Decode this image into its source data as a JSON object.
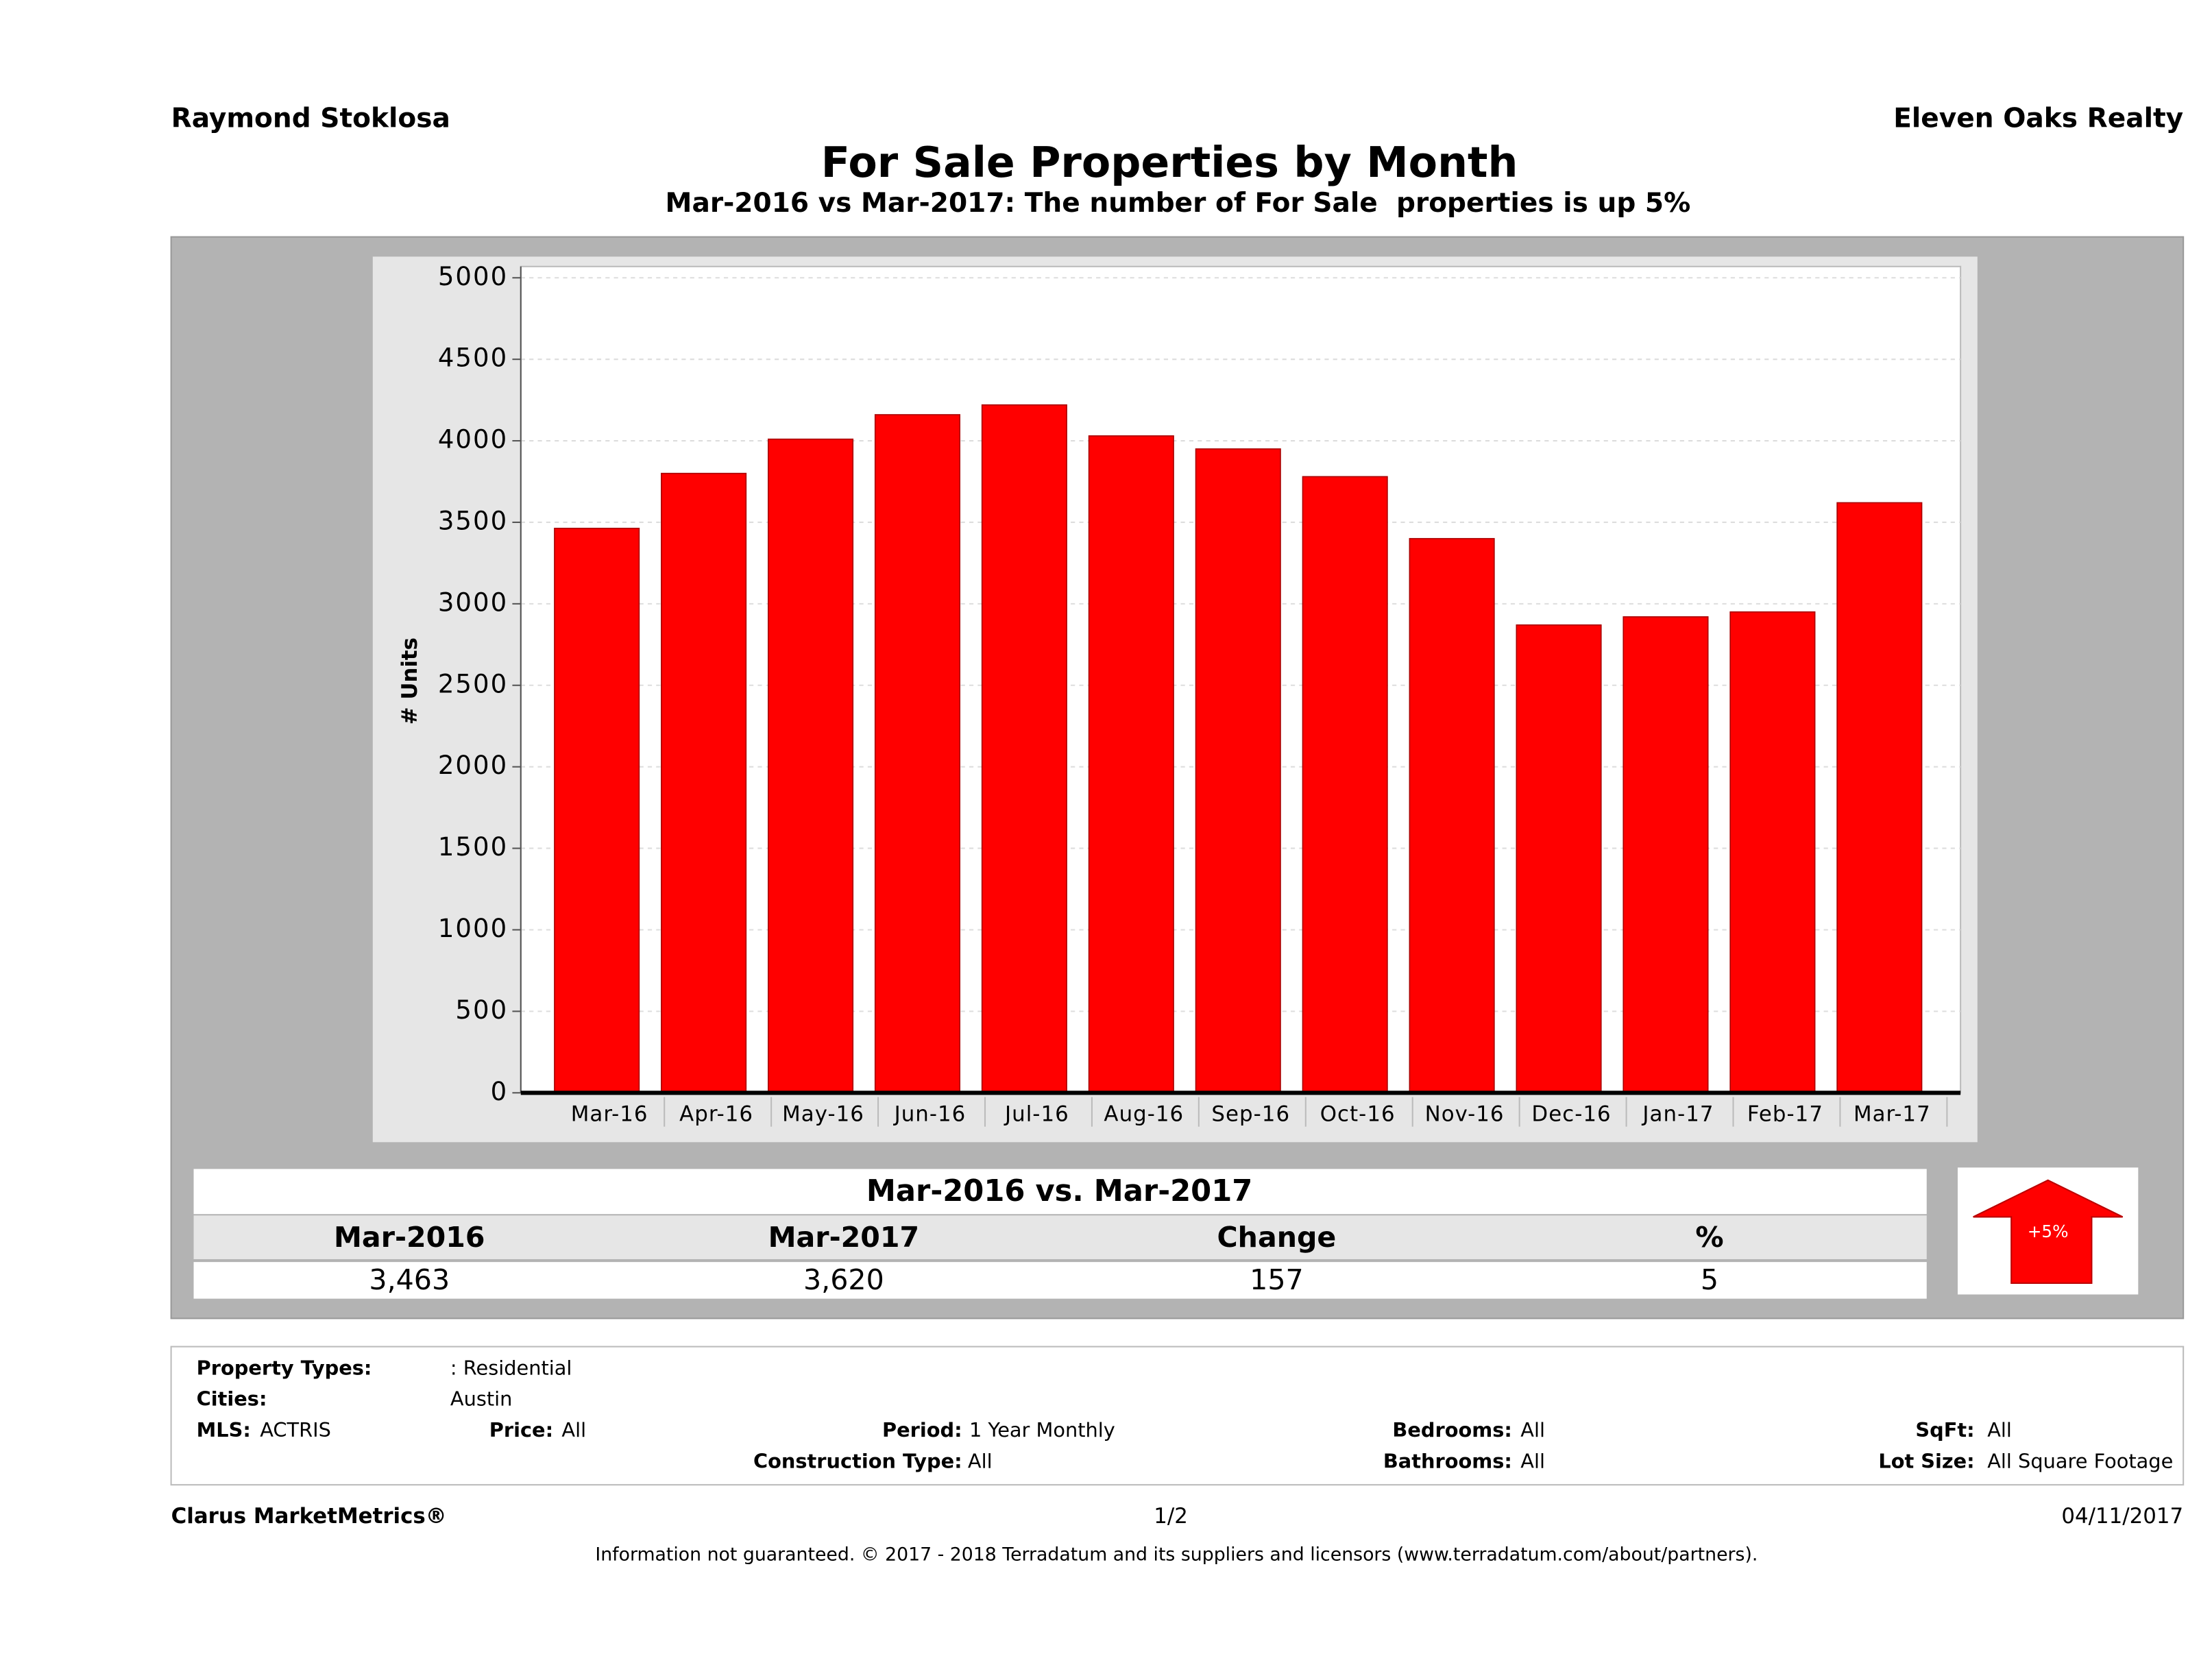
{
  "header": {
    "left": "Raymond Stoklosa",
    "right": "Eleven Oaks Realty"
  },
  "chart_data": {
    "type": "bar",
    "title": "For Sale Properties by Month",
    "subtitle": "Mar-2016 vs Mar-2017: The number of For Sale  properties is up 5%",
    "y_label": "# Units",
    "categories": [
      "Mar-16",
      "Apr-16",
      "May-16",
      "Jun-16",
      "Jul-16",
      "Aug-16",
      "Sep-16",
      "Oct-16",
      "Nov-16",
      "Dec-16",
      "Jan-17",
      "Feb-17",
      "Mar-17"
    ],
    "values": [
      3463,
      3800,
      4010,
      4160,
      4220,
      4030,
      3950,
      3780,
      3400,
      2870,
      2920,
      2950,
      3620
    ],
    "color": "#ff0000",
    "ylim": [
      0,
      5000
    ],
    "yticks": [
      0,
      500,
      1000,
      1500,
      2000,
      2500,
      3000,
      3500,
      4000,
      4500,
      5000
    ],
    "grid": true
  },
  "summary": {
    "title": "Mar-2016 vs. Mar-2017",
    "columns": [
      "Mar-2016",
      "Mar-2017",
      "Change",
      "%"
    ],
    "values": [
      "3,463",
      "3,620",
      "157",
      "5"
    ],
    "badge": "+5%"
  },
  "filters": [
    {
      "label": "Property Types:",
      "value": ": Residential"
    },
    {
      "label": "Cities:",
      "value": "Austin"
    },
    {
      "label": "MLS:",
      "value": "ACTRIS"
    },
    {
      "label": "Price:",
      "value": "All"
    },
    {
      "label": "Period:",
      "value": "1 Year Monthly"
    },
    {
      "label": "Bedrooms:",
      "value": "All"
    },
    {
      "label": "SqFt:",
      "value": "All"
    },
    {
      "label": "Construction Type:",
      "value": "All"
    },
    {
      "label": "Bathrooms:",
      "value": "All"
    },
    {
      "label": "Lot Size:",
      "value": "All Square Footage"
    }
  ],
  "footer": {
    "brand": "Clarus MarketMetrics®",
    "page": "1/2",
    "date": "04/11/2017",
    "disclaimer": "Information not guaranteed. © 2017 - 2018 Terradatum and its suppliers and licensors (www.terradatum.com/about/partners)."
  }
}
